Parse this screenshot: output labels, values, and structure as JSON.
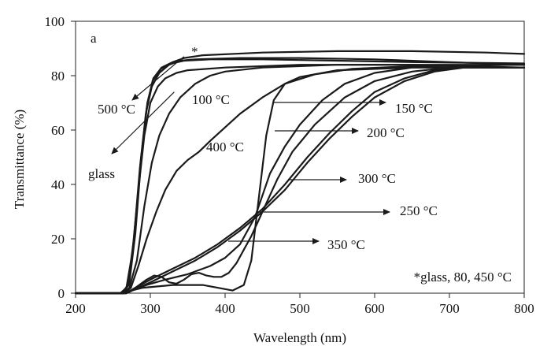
{
  "chart_data": {
    "type": "line",
    "panel_label": "a",
    "xlabel": "Wavelength (nm)",
    "ylabel": "Transmittance (%)",
    "xlim": [
      200,
      800
    ],
    "ylim": [
      0,
      100
    ],
    "xticks": [
      200,
      300,
      400,
      500,
      600,
      700,
      800
    ],
    "yticks": [
      0,
      20,
      40,
      60,
      80,
      100
    ],
    "grid": false,
    "series": [
      {
        "name": "glass",
        "points": [
          [
            200,
            0
          ],
          [
            260,
            0
          ],
          [
            268,
            2
          ],
          [
            276,
            15
          ],
          [
            284,
            38
          ],
          [
            292,
            58
          ],
          [
            300,
            70
          ],
          [
            310,
            76
          ],
          [
            320,
            79
          ],
          [
            335,
            81
          ],
          [
            350,
            82
          ],
          [
            400,
            83
          ],
          [
            500,
            84
          ],
          [
            600,
            84
          ],
          [
            700,
            84
          ],
          [
            800,
            84
          ]
        ]
      },
      {
        "name": "80 °C",
        "points": [
          [
            200,
            0
          ],
          [
            262,
            0
          ],
          [
            270,
            3
          ],
          [
            278,
            20
          ],
          [
            286,
            46
          ],
          [
            294,
            66
          ],
          [
            302,
            76
          ],
          [
            312,
            81
          ],
          [
            325,
            84
          ],
          [
            340,
            85.5
          ],
          [
            360,
            86
          ],
          [
            420,
            86.5
          ],
          [
            500,
            86.5
          ],
          [
            600,
            86
          ],
          [
            700,
            85
          ],
          [
            800,
            84
          ]
        ]
      },
      {
        "name": "450 °C",
        "points": [
          [
            200,
            0
          ],
          [
            264,
            0
          ],
          [
            272,
            4
          ],
          [
            280,
            22
          ],
          [
            288,
            50
          ],
          [
            296,
            70
          ],
          [
            304,
            79
          ],
          [
            315,
            83
          ],
          [
            330,
            85
          ],
          [
            345,
            86.5
          ],
          [
            370,
            87.5
          ],
          [
            450,
            88.5
          ],
          [
            550,
            89
          ],
          [
            650,
            89
          ],
          [
            750,
            88.5
          ],
          [
            800,
            88
          ]
        ]
      },
      {
        "name": "500 °C",
        "points": [
          [
            200,
            0
          ],
          [
            263,
            0
          ],
          [
            271,
            3
          ],
          [
            279,
            21
          ],
          [
            287,
            48
          ],
          [
            295,
            68
          ],
          [
            303,
            78
          ],
          [
            314,
            82.5
          ],
          [
            328,
            84.5
          ],
          [
            345,
            85.5
          ],
          [
            380,
            86
          ],
          [
            450,
            86
          ],
          [
            550,
            85.5
          ],
          [
            650,
            85
          ],
          [
            800,
            84.5
          ]
        ]
      },
      {
        "name": "100 °C",
        "points": [
          [
            200,
            0
          ],
          [
            264,
            0
          ],
          [
            272,
            2
          ],
          [
            282,
            12
          ],
          [
            292,
            32
          ],
          [
            302,
            48
          ],
          [
            312,
            58
          ],
          [
            325,
            66
          ],
          [
            340,
            72
          ],
          [
            360,
            77
          ],
          [
            380,
            80
          ],
          [
            400,
            81.5
          ],
          [
            450,
            83
          ],
          [
            550,
            84
          ],
          [
            650,
            84
          ],
          [
            800,
            83
          ]
        ]
      },
      {
        "name": "400 °C",
        "points": [
          [
            200,
            0
          ],
          [
            266,
            0
          ],
          [
            274,
            2
          ],
          [
            284,
            10
          ],
          [
            295,
            20
          ],
          [
            308,
            30
          ],
          [
            320,
            38
          ],
          [
            335,
            45
          ],
          [
            350,
            49
          ],
          [
            365,
            52
          ],
          [
            380,
            56
          ],
          [
            400,
            61
          ],
          [
            420,
            66
          ],
          [
            450,
            72
          ],
          [
            480,
            77
          ],
          [
            520,
            80.5
          ],
          [
            570,
            82.5
          ],
          [
            650,
            83.5
          ],
          [
            800,
            84
          ]
        ]
      },
      {
        "name": "150 °C",
        "points": [
          [
            200,
            0
          ],
          [
            265,
            0
          ],
          [
            275,
            1
          ],
          [
            290,
            2
          ],
          [
            310,
            2.5
          ],
          [
            330,
            3
          ],
          [
            350,
            3
          ],
          [
            370,
            3
          ],
          [
            390,
            2
          ],
          [
            410,
            1
          ],
          [
            425,
            3
          ],
          [
            435,
            12
          ],
          [
            445,
            35
          ],
          [
            455,
            58
          ],
          [
            465,
            71
          ],
          [
            480,
            77
          ],
          [
            500,
            79.5
          ],
          [
            550,
            82
          ],
          [
            650,
            83
          ],
          [
            800,
            83
          ]
        ]
      },
      {
        "name": "200 °C",
        "points": [
          [
            200,
            0
          ],
          [
            268,
            0
          ],
          [
            280,
            1.5
          ],
          [
            295,
            3
          ],
          [
            320,
            5
          ],
          [
            350,
            7
          ],
          [
            380,
            10
          ],
          [
            400,
            13
          ],
          [
            420,
            18
          ],
          [
            440,
            28
          ],
          [
            450,
            36
          ],
          [
            460,
            44
          ],
          [
            480,
            54
          ],
          [
            500,
            62
          ],
          [
            530,
            71
          ],
          [
            560,
            77
          ],
          [
            600,
            81
          ],
          [
            650,
            83
          ],
          [
            800,
            83
          ]
        ]
      },
      {
        "name": "250 °C",
        "points": [
          [
            200,
            0
          ],
          [
            268,
            0
          ],
          [
            280,
            2
          ],
          [
            300,
            5
          ],
          [
            330,
            9
          ],
          [
            360,
            13
          ],
          [
            390,
            18
          ],
          [
            420,
            24
          ],
          [
            450,
            31
          ],
          [
            480,
            40
          ],
          [
            510,
            50
          ],
          [
            540,
            59
          ],
          [
            570,
            67
          ],
          [
            600,
            74
          ],
          [
            640,
            79
          ],
          [
            680,
            82
          ],
          [
            720,
            83
          ],
          [
            800,
            83
          ]
        ]
      },
      {
        "name": "300 °C",
        "points": [
          [
            200,
            0
          ],
          [
            268,
            0
          ],
          [
            280,
            1.5
          ],
          [
            300,
            4
          ],
          [
            330,
            8
          ],
          [
            360,
            12
          ],
          [
            390,
            17
          ],
          [
            420,
            23
          ],
          [
            450,
            30
          ],
          [
            480,
            38
          ],
          [
            510,
            48
          ],
          [
            540,
            57
          ],
          [
            570,
            65
          ],
          [
            600,
            72
          ],
          [
            640,
            78
          ],
          [
            680,
            81.5
          ],
          [
            720,
            83
          ],
          [
            800,
            83
          ]
        ]
      },
      {
        "name": "350 °C",
        "points": [
          [
            200,
            0
          ],
          [
            268,
            0
          ],
          [
            280,
            2
          ],
          [
            295,
            5
          ],
          [
            305,
            6.5
          ],
          [
            315,
            6
          ],
          [
            325,
            4
          ],
          [
            335,
            3.5
          ],
          [
            345,
            5
          ],
          [
            355,
            7
          ],
          [
            365,
            7.5
          ],
          [
            375,
            6.5
          ],
          [
            385,
            6
          ],
          [
            395,
            6
          ],
          [
            405,
            7.5
          ],
          [
            415,
            11
          ],
          [
            425,
            16
          ],
          [
            435,
            21
          ],
          [
            445,
            27
          ],
          [
            455,
            33
          ],
          [
            470,
            42
          ],
          [
            490,
            52
          ],
          [
            520,
            62
          ],
          [
            560,
            72
          ],
          [
            600,
            78
          ],
          [
            650,
            81.5
          ],
          [
            700,
            83
          ],
          [
            800,
            83
          ]
        ]
      }
    ],
    "annotations": [
      {
        "text": "*",
        "x": 352,
        "y": 87.5,
        "arrow_to": null
      },
      {
        "text": "500 °C",
        "x": 302,
        "y": 70,
        "arrow_to": [
          345,
          87
        ]
      },
      {
        "text": "glass",
        "x": 282,
        "y": 53,
        "arrow_to": [
          332,
          74
        ]
      },
      {
        "text": "100 °C",
        "x": 322,
        "y": 71,
        "arrow_to": null
      },
      {
        "text": "400 °C",
        "x": 372,
        "y": 54,
        "arrow_to": null
      },
      {
        "text": "150 °C",
        "x": 461,
        "y": 70,
        "arrow_to": [
          598,
          70
        ]
      },
      {
        "text": "200 °C",
        "x": 452,
        "y": 60,
        "arrow_to": [
          563,
          60
        ]
      },
      {
        "text": "300 °C",
        "x": 480,
        "y": 41,
        "arrow_to": [
          570,
          41
        ]
      },
      {
        "text": "250 °C",
        "x": 436,
        "y": 30,
        "arrow_to": [
          605,
          30
        ]
      },
      {
        "text": "350 °C",
        "x": 425,
        "y": 20,
        "arrow_to": [
          513,
          20
        ]
      },
      {
        "text": "*glass, 80, 450 °C",
        "x": 0,
        "y": 0,
        "arrow_to": null
      }
    ]
  }
}
